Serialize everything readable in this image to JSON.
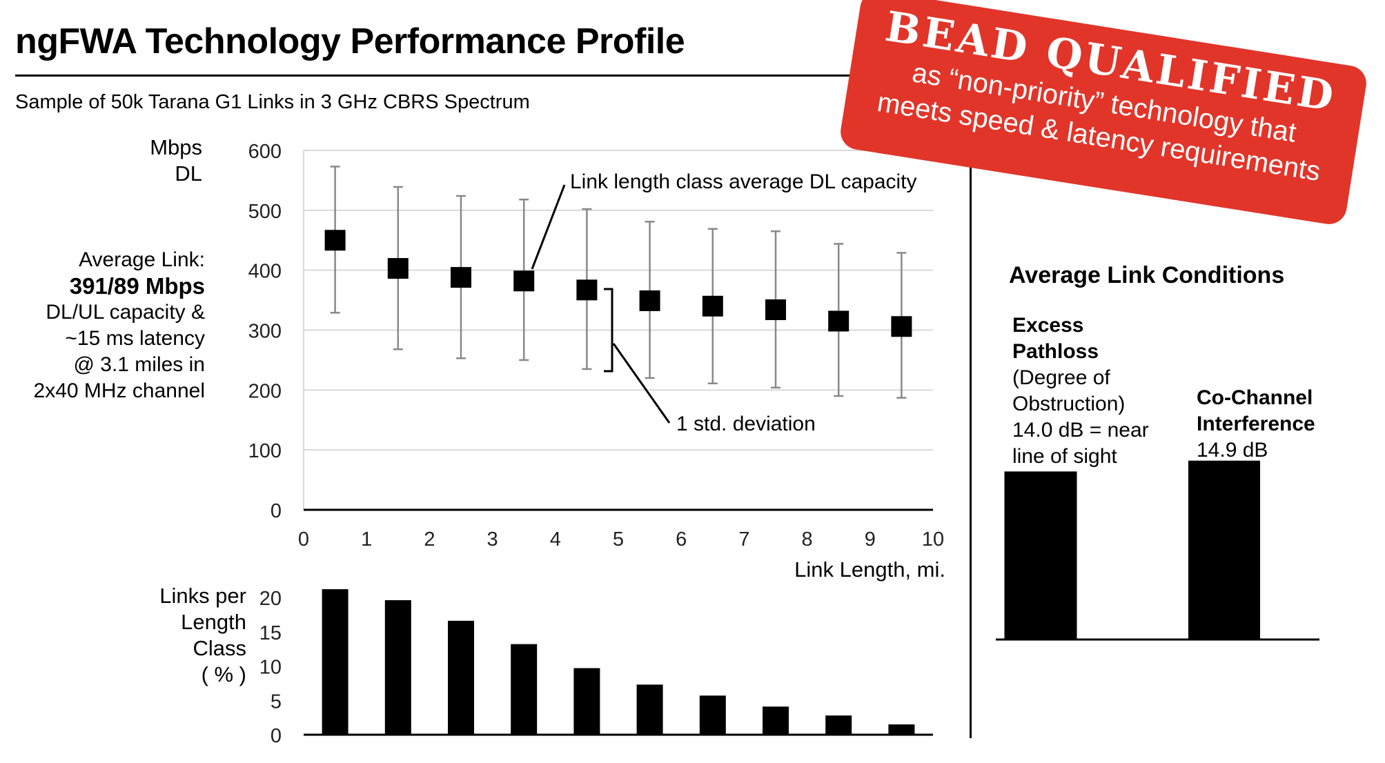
{
  "header": {
    "title": "ngFWA Technology Performance Profile",
    "subtitle": "Sample of 50k Tarana G1 Links in 3 GHz CBRS Spectrum"
  },
  "stamp": {
    "line1": "BEAD QUALIFIED",
    "line2": "as “non-priority” technology that",
    "line3": "meets speed & latency requirements"
  },
  "left_panel": {
    "ylabel_line1": "Mbps",
    "ylabel_line2": "DL",
    "avg_label": "Average Link:",
    "avg_value": "391/89 Mbps",
    "avg_line3": "DL/UL capacity &",
    "avg_line4": "~15 ms latency",
    "avg_line5": "@ 3.1 miles in",
    "avg_line6": "2x40 MHz channel",
    "bottom_ylabel_line1": "Links per",
    "bottom_ylabel_line2": "Length",
    "bottom_ylabel_line3": "Class",
    "bottom_ylabel_line4": "( % )"
  },
  "right_panel": {
    "title": "Average Link Conditions",
    "pathloss_line1": "Excess",
    "pathloss_line2": "Pathloss",
    "pathloss_line3": "(Degree of",
    "pathloss_line4": "Obstruction)",
    "pathloss_line5": "14.0 dB = near",
    "pathloss_line6": "line of sight",
    "interf_line1": "Co-Channel",
    "interf_line2": "Interference",
    "interf_line3": "14.9 dB"
  },
  "chart_data": [
    {
      "type": "scatter",
      "title": "",
      "xlabel": "Link Length, mi.",
      "ylabel": "Mbps DL",
      "xlim": [
        0,
        10
      ],
      "ylim": [
        0,
        600
      ],
      "x_ticks": [
        "0",
        "1",
        "2",
        "3",
        "4",
        "5",
        "6",
        "7",
        "8",
        "9",
        "10"
      ],
      "y_ticks": [
        "0",
        "100",
        "200",
        "300",
        "400",
        "500",
        "600"
      ],
      "grid": true,
      "x": [
        0.5,
        1.5,
        2.5,
        3.5,
        4.5,
        5.5,
        6.5,
        7.5,
        8.5,
        9.5
      ],
      "y": [
        450,
        403,
        388,
        382,
        367,
        349,
        340,
        334,
        315,
        306
      ],
      "err_high": [
        573,
        539,
        524,
        518,
        502,
        481,
        469,
        465,
        444,
        429
      ],
      "err_low": [
        329,
        268,
        253,
        250,
        235,
        220,
        211,
        204,
        190,
        187
      ],
      "annotations": [
        "Link length class average DL capacity",
        "1 std. deviation"
      ]
    },
    {
      "type": "bar",
      "ylabel": "Links per Length Class ( % )",
      "ylim": [
        0,
        20
      ],
      "y_ticks": [
        "0",
        "5",
        "10",
        "15",
        "20"
      ],
      "x": [
        0.5,
        1.5,
        2.5,
        3.5,
        4.5,
        5.5,
        6.5,
        7.5,
        8.5,
        9.5
      ],
      "values": [
        21.2,
        19.6,
        16.6,
        13.2,
        9.7,
        7.3,
        5.7,
        4.1,
        2.8,
        1.5
      ]
    },
    {
      "type": "bar",
      "categories": [
        "Excess Pathloss",
        "Co-Channel Interference"
      ],
      "values": [
        14.0,
        14.9
      ],
      "units": "dB"
    }
  ]
}
